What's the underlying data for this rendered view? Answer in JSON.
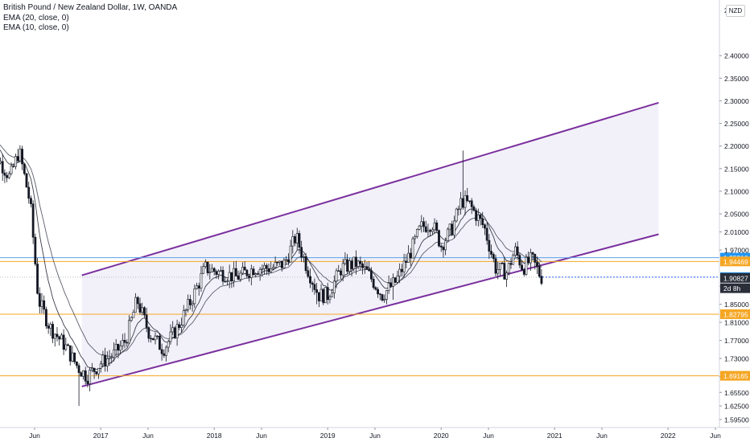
{
  "legend": {
    "title": "British Pound / New Zealand Dollar, 1W, OANDA",
    "ema20": "EMA (20, close, 0)",
    "ema10": "EMA (10, close, 0)"
  },
  "currency_badge": "NZD",
  "colors": {
    "channel": "#7b2f9e",
    "channel_fill": "#f0eef8",
    "orange_line": "#f5a623",
    "blue_line": "#5ba3e6",
    "candle": "#131722",
    "ema": "#5a5e6b",
    "axis_text": "#131722"
  },
  "chart_data": {
    "type": "candlestick",
    "title": "British Pound / New Zealand Dollar, 1W, OANDA",
    "ylim": [
      1.595,
      2.52
    ],
    "y_ticks": [
      "2.40000",
      "2.35000",
      "2.30000",
      "2.25000",
      "2.20000",
      "2.15000",
      "2.10000",
      "2.05000",
      "2.01000",
      "1.97000",
      "1.89000",
      "1.85000",
      "1.81000",
      "1.77000",
      "1.73000",
      "1.69000",
      "1.65500",
      "1.62500",
      "1.59500"
    ],
    "x_ticks": [
      "Jun",
      "2017",
      "Jun",
      "2018",
      "Jun",
      "2019",
      "Jun",
      "2020",
      "Jun",
      "2021",
      "Jun",
      "2022",
      "Jun"
    ],
    "price_labels": [
      {
        "label": "1.95310",
        "value": 1.9531,
        "style": "blue"
      },
      {
        "label": "1.94469",
        "value": 1.9447,
        "style": "orange"
      },
      {
        "label": "1.91000",
        "value": 1.91,
        "style": "blue"
      },
      {
        "label": "1.90827",
        "value": 1.9083,
        "style": "dark"
      },
      {
        "label": "2d 8h",
        "value": 1.8855,
        "style": "dark"
      },
      {
        "label": "1.82795",
        "value": 1.828,
        "style": "orange"
      },
      {
        "label": "1.69165",
        "value": 1.6917,
        "style": "orange"
      }
    ],
    "horizontal_levels": [
      {
        "value": 1.9531,
        "color": "blue"
      },
      {
        "value": 1.9447,
        "color": "orange"
      },
      {
        "value": 1.828,
        "color": "orange"
      },
      {
        "value": 1.6917,
        "color": "orange"
      }
    ],
    "channel": {
      "upper": [
        [
          "2016-11",
          1.914
        ],
        [
          "2021-12",
          2.2958
        ]
      ],
      "lower": [
        [
          "2016-11",
          1.668
        ],
        [
          "2021-12",
          2.0048
        ]
      ]
    },
    "series": [
      {
        "name": "EMA (20, close, 0)"
      },
      {
        "name": "EMA (10, close, 0)"
      }
    ],
    "summary_path": [
      [
        2016.0,
        2.22
      ],
      [
        2016.1,
        2.17
      ],
      [
        2016.2,
        2.13
      ],
      [
        2016.28,
        2.19
      ],
      [
        2016.38,
        2.07
      ],
      [
        2016.45,
        1.86
      ],
      [
        2016.55,
        1.8
      ],
      [
        2016.68,
        1.76
      ],
      [
        2016.8,
        1.71
      ],
      [
        2016.88,
        1.69
      ],
      [
        2017.0,
        1.72
      ],
      [
        2017.12,
        1.74
      ],
      [
        2017.22,
        1.77
      ],
      [
        2017.32,
        1.86
      ],
      [
        2017.42,
        1.79
      ],
      [
        2017.55,
        1.75
      ],
      [
        2017.68,
        1.8
      ],
      [
        2017.8,
        1.86
      ],
      [
        2017.92,
        1.93
      ],
      [
        2018.05,
        1.92
      ],
      [
        2018.2,
        1.91
      ],
      [
        2018.35,
        1.93
      ],
      [
        2018.5,
        1.93
      ],
      [
        2018.62,
        1.94
      ],
      [
        2018.72,
        2.0
      ],
      [
        2018.82,
        1.93
      ],
      [
        2018.92,
        1.87
      ],
      [
        2019.0,
        1.87
      ],
      [
        2019.12,
        1.93
      ],
      [
        2019.25,
        1.94
      ],
      [
        2019.35,
        1.92
      ],
      [
        2019.48,
        1.87
      ],
      [
        2019.6,
        1.9
      ],
      [
        2019.72,
        1.96
      ],
      [
        2019.82,
        2.02
      ],
      [
        2019.92,
        2.03
      ],
      [
        2020.0,
        1.98
      ],
      [
        2020.1,
        2.02
      ],
      [
        2020.18,
        2.08
      ],
      [
        2020.25,
        2.07
      ],
      [
        2020.38,
        2.02
      ],
      [
        2020.48,
        1.93
      ],
      [
        2020.58,
        1.92
      ],
      [
        2020.65,
        1.97
      ],
      [
        2020.72,
        1.93
      ],
      [
        2020.8,
        1.95
      ],
      [
        2020.88,
        1.91
      ]
    ]
  }
}
